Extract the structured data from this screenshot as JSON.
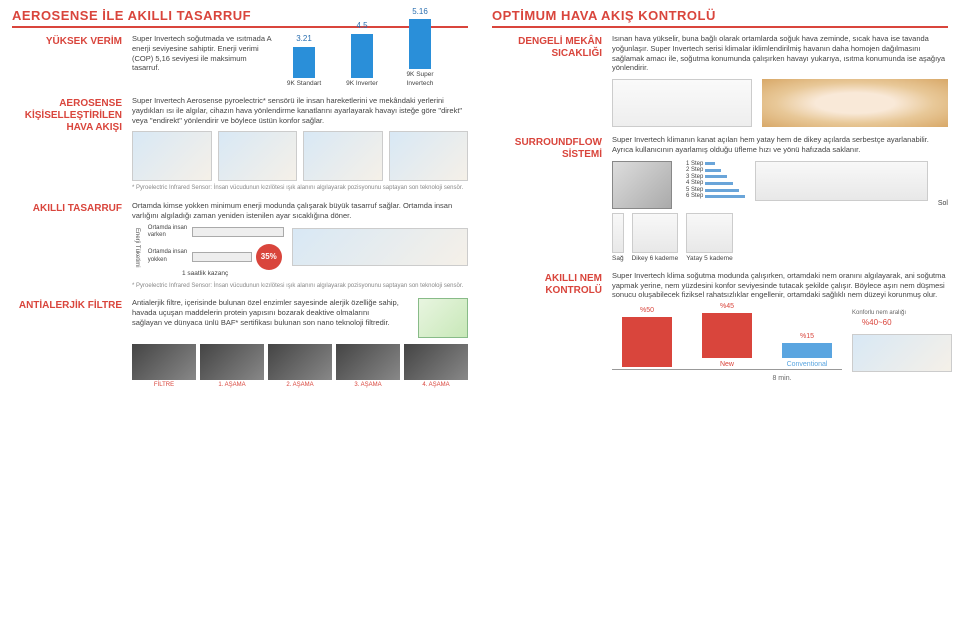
{
  "left": {
    "header": "AEROSENSE İLE AKILLI TASARRUF",
    "high_eff": {
      "label": "YÜKSEK VERİM",
      "text": "Super Invertech soğutmada ve ısıtmada A enerji seviyesine sahiptir. Enerji verimi (COP) 5,16 seviyesi ile maksimum tasarruf.",
      "bars": {
        "values": [
          3.21,
          4.5,
          5.16
        ],
        "heights": [
          31,
          44,
          50
        ],
        "labels": [
          "9K Standart",
          "9K Inverter",
          "9K Super Invertech"
        ],
        "color": "#2a8fd9"
      }
    },
    "aerosense": {
      "label": "AEROSENSE KİŞİSELLEŞTİRİLEN HAVA AKIŞI",
      "text": "Super Invertech Aerosense pyroelectric* sensörü ile insan hareketlerini ve mekândaki yerlerini yaydıkları ısı ile algılar, cihazın hava yönlendirme kanatlarını ayarlayarak havayı isteğe göre \"direkt\" veya \"endirekt\" yönlendirir ve böylece üstün konfor sağlar.",
      "footnote": "* Pyroelectric Infrared Sensor: İnsan vücudunun kızılötesi ışık alanını algılayarak pozisyonunu saptayan son teknoloji sensör."
    },
    "smart_save": {
      "label": "AKILLI TASARRUF",
      "text": "Ortamda kimse yokken minimum enerji modunda çalışarak büyük tasarruf sağlar. Ortamda insan varlığını algıladığı zaman yeniden istenilen ayar sıcaklığına döner.",
      "axis_label": "Enerji Tüketimi",
      "bar1_label": "Ortamda insan varken",
      "bar2_label": "Ortamda insan yokken",
      "pct": "35%",
      "caption": "1 saatlik kazanç",
      "footnote": "* Pyroelectric Infrared Sensor: İnsan vücudunun kızılötesi ışık alanını algılayarak pozisyonunu saptayan son teknoloji sensör."
    },
    "antiallergic": {
      "label": "ANTİALERJİK FİLTRE",
      "text": "Antialerjik filtre, içerisinde bulunan özel enzimler sayesinde alerjik özelliğe sahip, havada uçuşan maddelerin protein yapısını bozarak deaktive olmalarını sağlayan ve dünyaca ünlü BAF* sertifikası bulunan son nano teknoloji filtredir.",
      "stages": [
        "FİLTRE",
        "1. AŞAMA",
        "2. AŞAMA",
        "3. AŞAMA",
        "4. AŞAMA"
      ]
    }
  },
  "right": {
    "header": "OPTİMUM HAVA AKIŞ KONTROLÜ",
    "balanced": {
      "label": "DENGELİ MEKÂN SICAKLIĞI",
      "text": "Isınan hava yükselir, buna bağlı olarak ortamlarda soğuk hava zeminde, sıcak hava ise tavanda yoğunlaşır. Super Invertech serisi klimalar iklimlendirilmiş havanın daha homojen dağılmasını sağlamak amacı ile, soğutma konumunda çalışırken havayı yukarıya, ısıtma konumunda ise aşağıya yönlendirir."
    },
    "surround": {
      "label": "SURROUNDFLOW SİSTEMİ",
      "text": "Super Invertech klimanın kanat açıları hem yatay hem de dikey açılarda serbestçe ayarlanabilir. Ayrıca kullanıcının ayarlamış olduğu üfleme hızı ve yönü hafızada saklanır.",
      "steps": [
        "1 Step",
        "2 Step",
        "3 Step",
        "4 Step",
        "5 Step",
        "6 Step"
      ],
      "sol": "Sol",
      "flow_labels": [
        "Sağ",
        "Dikey 6 kademe",
        "Yatay 5 kademe"
      ]
    },
    "humidity": {
      "label": "AKILLI NEM KONTROLÜ",
      "text": "Super Invertech klima soğutma modunda çalışırken, ortamdaki nem oranını algılayarak, ani soğutma yapmak yerine, nem yüzdesini konfor seviyesinde tutacak şekilde çalışır. Böylece aşırı nem düşmesi sonucu oluşabilecek fiziksel rahatsızlıklar engellenir, ortamdaki sağlıklı nem düzeyi korunmuş olur.",
      "range_sub": "Konforlu nem aralığı",
      "range": "%40~60",
      "bars": {
        "vals": [
          "%50",
          "%45",
          "%15"
        ],
        "heights": [
          50,
          45,
          15
        ],
        "colors": [
          "#d9453c",
          "#d9453c",
          "#5aa5e0"
        ],
        "labels": [
          "",
          "New",
          "Conventional"
        ]
      },
      "timing": "8 min."
    }
  }
}
